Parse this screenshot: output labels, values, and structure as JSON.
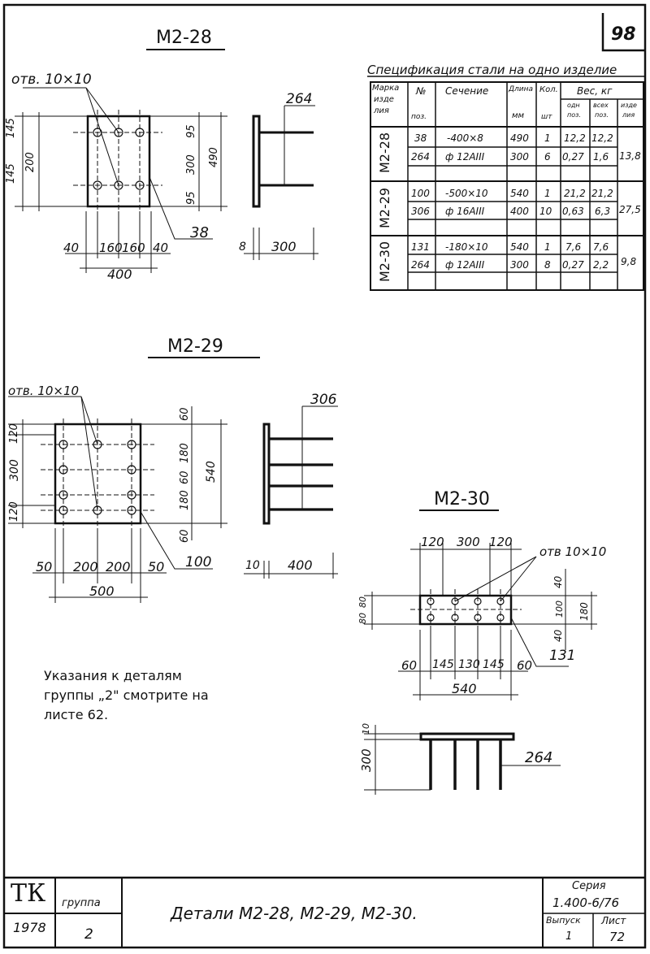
{
  "sheet": {
    "number": "98",
    "group_label": "группа",
    "group_value": "2",
    "tk": "ТК",
    "year": "1978",
    "title": "Детали М2-28, М2-29, М2-30.",
    "series_label": "Серия",
    "series_value": "1.400-6/76",
    "issue_label": "Выпуск",
    "issue_value": "1",
    "sheet_label": "Лист",
    "sheet_value": "72"
  },
  "spec": {
    "title": "Спецификация стали на одно изделие",
    "headers": {
      "mark": "Марка",
      "mark2": "изде",
      "mark3": "лия",
      "pos": "№",
      "pos2": "поз.",
      "section": "Сечение",
      "length": "Длина",
      "length_unit": "мм",
      "qty": "Кол.",
      "qty_unit": "шт",
      "weight": "Вес, кг",
      "w_one": "одн",
      "w_one2": "поз.",
      "w_all": "всех",
      "w_all2": "поз.",
      "w_item": "изде",
      "w_item2": "лия"
    },
    "groups": [
      {
        "mark": "М2-28",
        "rows": [
          {
            "pos": "38",
            "section": "-400×8",
            "length": "490",
            "qty": "1",
            "w_one": "12,2",
            "w_all": "12,2"
          },
          {
            "pos": "264",
            "section": "ф 12AIII",
            "length": "300",
            "qty": "6",
            "w_one": "0,27",
            "w_all": "1,6"
          }
        ],
        "total": "13,8"
      },
      {
        "mark": "М2-29",
        "rows": [
          {
            "pos": "100",
            "section": "-500×10",
            "length": "540",
            "qty": "1",
            "w_one": "21,2",
            "w_all": "21,2"
          },
          {
            "pos": "306",
            "section": "ф 16AIII",
            "length": "400",
            "qty": "10",
            "w_one": "0,63",
            "w_all": "6,3"
          }
        ],
        "total": "27,5"
      },
      {
        "mark": "М2-30",
        "rows": [
          {
            "pos": "131",
            "section": "-180×10",
            "length": "540",
            "qty": "1",
            "w_one": "7,6",
            "w_all": "7,6"
          },
          {
            "pos": "264",
            "section": "ф 12AIII",
            "length": "300",
            "qty": "8",
            "w_one": "0,27",
            "w_all": "2,2"
          }
        ],
        "total": "9,8"
      }
    ]
  },
  "m28": {
    "title": "М2-28",
    "hole": "отв. 10×10",
    "dims_left": [
      "145",
      "200",
      "145"
    ],
    "dims_right": [
      "95",
      "300",
      "95"
    ],
    "dim_490": "490",
    "dims_bottom": [
      "40",
      "160",
      "160",
      "40"
    ],
    "dim_400": "400",
    "pos_plate": "38",
    "pos_bar": "264",
    "side_dim_8": "8",
    "side_dim_300": "300"
  },
  "m29": {
    "title": "М2-29",
    "hole": "отв. 10×10",
    "dims_left": [
      "120",
      "300",
      "120"
    ],
    "dims_right": [
      "60",
      "180",
      "60",
      "180",
      "60"
    ],
    "dim_540": "540",
    "dims_bottom": [
      "50",
      "200",
      "200",
      "50"
    ],
    "dim_500": "500",
    "pos_plate": "100",
    "pos_bar": "306",
    "side_dim_10": "10",
    "side_dim_400": "400"
  },
  "m30": {
    "title": "М2-30",
    "hole": "отв 10×10",
    "dims_top": [
      "120",
      "300",
      "120"
    ],
    "dims_left": [
      "80",
      "80"
    ],
    "dims_right": [
      "40",
      "100",
      "40"
    ],
    "dim_180": "180",
    "dims_bottom": [
      "60",
      "145",
      "130",
      "145",
      "60"
    ],
    "dim_540": "540",
    "pos_plate": "131",
    "pos_bar": "264",
    "side_dim_10": "10",
    "side_dim_300": "300"
  },
  "note": {
    "line1": "Указания к деталям",
    "line2": "группы „2\" смотрите на",
    "line3": "листе 62."
  }
}
